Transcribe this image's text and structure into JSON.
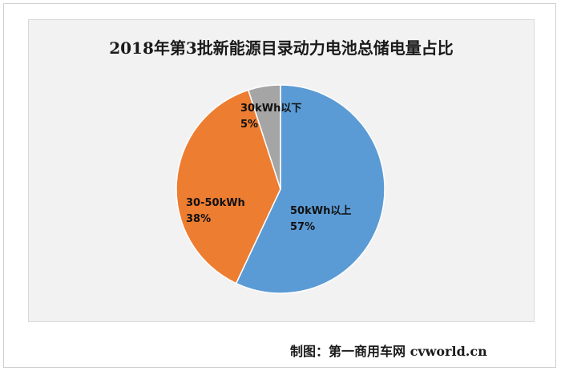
{
  "chart_data": {
    "type": "pie",
    "title": "2018年第3批新能源目录动力电池总储电量占比",
    "slices": [
      {
        "label": "50kWh以上",
        "value": 57,
        "display": "57%",
        "color": "#5b9bd5"
      },
      {
        "label": "30-50kWh",
        "value": 38,
        "display": "38%",
        "color": "#ed7d31"
      },
      {
        "label": "30kWh以下",
        "value": 5,
        "display": "5%",
        "color": "#a5a5a5"
      }
    ],
    "start_angle_deg": 0,
    "direction": "clockwise",
    "legend": "none"
  },
  "footer": {
    "credit": "制图：第一商用车网 cvworld.cn"
  }
}
